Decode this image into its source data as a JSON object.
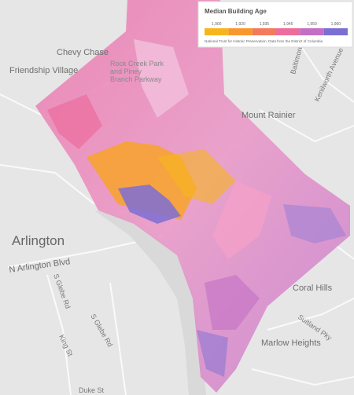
{
  "legend": {
    "title": "Median Building Age",
    "items": [
      {
        "label": "1,900",
        "color": "#f7b51c"
      },
      {
        "label": "1,920",
        "color": "#f8982c"
      },
      {
        "label": "1,935",
        "color": "#f47a5c"
      },
      {
        "label": "1,945",
        "color": "#ec6c9c"
      },
      {
        "label": "1,950",
        "color": "#c36fc4"
      },
      {
        "label": "1,960",
        "color": "#7c6fd4"
      }
    ],
    "source": "National Trust for Historic Preservation. Data from the District of Columbia"
  },
  "map": {
    "labels": [
      {
        "text": "Chevy Chase",
        "kind": "place"
      },
      {
        "text": "Friendship Village",
        "kind": "place"
      },
      {
        "text": "Rock Creek Park and Piney Branch Parkway",
        "kind": "park"
      },
      {
        "text": "Mount Rainier",
        "kind": "place"
      },
      {
        "text": "Arlington",
        "kind": "big"
      },
      {
        "text": "N Arlington Blvd",
        "kind": "place"
      },
      {
        "text": "S Glebe Rd",
        "kind": "road"
      },
      {
        "text": "S Glebe Rd",
        "kind": "road"
      },
      {
        "text": "King St",
        "kind": "road"
      },
      {
        "text": "Duke St",
        "kind": "road"
      },
      {
        "text": "Coral Hills",
        "kind": "place"
      },
      {
        "text": "Marlow Heights",
        "kind": "place"
      },
      {
        "text": "Suitland Pky",
        "kind": "road"
      },
      {
        "text": "Baltimore Ave",
        "kind": "road"
      },
      {
        "text": "Kenilworth Avenue",
        "kind": "road"
      }
    ]
  }
}
